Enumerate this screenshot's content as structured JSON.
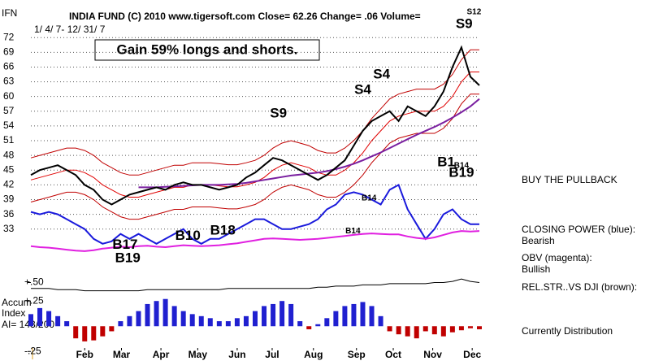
{
  "chart_data": [
    {
      "type": "line",
      "symbol": "IFN",
      "title": "INDIA FUND   (C) 2010 www.tigersoft.com   Close= 62.26  Change= .06  Volume=",
      "subtitle": "1/ 4/ 7- 12/ 31/ 7",
      "annotation": "Gain 59% longs and shorts.",
      "comment": "BUY THE PULLBACK",
      "status": "Currently Distribution",
      "grid": true,
      "x": [
        0,
        1,
        2,
        3,
        4,
        5,
        6,
        7,
        8,
        9,
        10,
        11,
        12,
        13,
        14,
        15,
        16,
        17,
        18,
        19,
        20,
        21,
        22,
        23,
        24,
        25,
        26,
        27,
        28,
        29,
        30,
        31,
        32,
        33,
        34,
        35,
        36,
        37,
        38,
        39,
        40,
        41,
        42,
        43,
        44,
        45,
        46,
        47,
        48,
        49,
        50
      ],
      "xlim": [
        0,
        50
      ],
      "xticks": [
        {
          "value": 6,
          "label": "Feb"
        },
        {
          "value": 10.1,
          "label": "Mar"
        },
        {
          "value": 14.5,
          "label": "Apr"
        },
        {
          "value": 18.6,
          "label": "May"
        },
        {
          "value": 23,
          "label": "Jun"
        },
        {
          "value": 26.9,
          "label": "Jul"
        },
        {
          "value": 31.5,
          "label": "Aug"
        },
        {
          "value": 36.3,
          "label": "Sep"
        },
        {
          "value": 40.4,
          "label": "Oct"
        },
        {
          "value": 44.8,
          "label": "Nov"
        },
        {
          "value": 49.2,
          "label": "Dec"
        }
      ],
      "ylim": [
        25,
        78
      ],
      "yticks": [
        33,
        36,
        39,
        42,
        45,
        48,
        51,
        54,
        57,
        60,
        63,
        66,
        69,
        72
      ],
      "series": [
        {
          "color": "#c00000",
          "values": [
            47.5,
            48,
            48.5,
            49,
            49.5,
            49.5,
            49,
            48,
            46.5,
            45.5,
            44.5,
            44,
            44,
            44.5,
            45,
            45.5,
            46,
            46,
            46.5,
            46.5,
            46.5,
            46.3,
            46.1,
            46.1,
            46.5,
            47,
            48,
            49.5,
            50.5,
            51,
            50.5,
            50,
            49,
            48.5,
            48.5,
            49.5,
            51,
            53,
            55.5,
            57.5,
            59.5,
            60.5,
            61,
            61.5,
            61.5,
            61.5,
            62.5,
            64.5,
            67.5,
            69.5,
            69.5
          ]
        },
        {
          "color": "#c00000",
          "values": [
            38.5,
            39,
            39.5,
            40,
            40.5,
            40.5,
            40,
            39,
            37.5,
            36.5,
            35.5,
            35,
            35,
            35.5,
            36,
            36.5,
            37,
            37,
            37.5,
            37.5,
            37.5,
            37.3,
            37.1,
            37.1,
            37.5,
            38,
            39,
            40.5,
            41.5,
            42,
            41.5,
            41,
            40,
            39.5,
            39.5,
            40.5,
            42,
            44,
            46.5,
            48.5,
            50.5,
            51.5,
            52,
            52.5,
            52.5,
            52.5,
            53.5,
            55.5,
            58.5,
            60.5,
            60.5
          ]
        },
        {
          "color": "#e00000",
          "values": [
            43,
            43.5,
            44,
            44.5,
            45,
            45,
            44.5,
            43.5,
            42,
            41,
            40,
            39.5,
            39.5,
            40,
            40.5,
            41,
            41.5,
            41.5,
            42,
            42,
            42,
            41.8,
            41.6,
            41.6,
            42,
            42.5,
            43.5,
            45,
            46,
            46.5,
            46,
            45.5,
            44.5,
            44,
            44,
            45,
            46.5,
            48.5,
            51,
            53,
            55,
            56,
            56.5,
            57,
            57,
            57,
            58,
            60,
            63,
            65,
            65
          ]
        },
        {
          "color": "#7a1fa0",
          "values": [
            null,
            null,
            null,
            null,
            null,
            null,
            null,
            null,
            null,
            null,
            null,
            null,
            41.5,
            41.5,
            41.5,
            41.6,
            41.7,
            41.8,
            41.9,
            42,
            42,
            42,
            42.1,
            42.2,
            42.4,
            42.7,
            43,
            43.3,
            43.6,
            43.9,
            44.1,
            44.3,
            44.5,
            44.8,
            45.2,
            45.7,
            46.3,
            47,
            47.8,
            48.6,
            49.5,
            50.4,
            51.3,
            52.2,
            53,
            53.8,
            54.7,
            55.7,
            56.8,
            58,
            59.5
          ]
        },
        {
          "name": "CLOSING POWER (blue):",
          "status": "Bearish",
          "color": "#1a1adc",
          "values": [
            36.5,
            36,
            36.5,
            36,
            35,
            34,
            33,
            31,
            30,
            30.5,
            32,
            31,
            32,
            31,
            30,
            31,
            32,
            33,
            31,
            30,
            31,
            31,
            32,
            33,
            34,
            35,
            35,
            34,
            33,
            33,
            33.5,
            34,
            35,
            37,
            38,
            40,
            40.5,
            40,
            39,
            38,
            41,
            42,
            37,
            34,
            31,
            33,
            36,
            37,
            35,
            34,
            34
          ]
        },
        {
          "name": "OBV (magenta):",
          "status": "Bullish",
          "color": "#e020e0",
          "values": [
            29.5,
            29.3,
            29.2,
            29,
            28.8,
            28.6,
            28.5,
            28.7,
            29,
            29.2,
            29.4,
            29.3,
            29.5,
            29.6,
            29.4,
            29.3,
            29.5,
            29.7,
            29.6,
            29.5,
            29.6,
            29.7,
            29.9,
            30.1,
            30.4,
            30.7,
            31,
            31.1,
            31,
            30.9,
            30.8,
            30.9,
            31,
            31.2,
            31.4,
            31.6,
            31.8,
            32,
            32.1,
            32,
            31.9,
            31.9,
            31.5,
            31.2,
            31,
            31.3,
            31.8,
            32.3,
            32.6,
            32.5,
            32.6
          ]
        },
        {
          "name": "IFN",
          "color": "#000000",
          "values": [
            44,
            45,
            45.5,
            46,
            45,
            44,
            42,
            41,
            39,
            38,
            39,
            40,
            40.5,
            41,
            41.5,
            41,
            42,
            42.5,
            42,
            42,
            41.5,
            41,
            41.5,
            42,
            43.5,
            44.5,
            46,
            47.5,
            47,
            46,
            45,
            44,
            43,
            44,
            45.5,
            47,
            50,
            53,
            55,
            56,
            57,
            55,
            58,
            57,
            56,
            58,
            61,
            66,
            70,
            64,
            62.26
          ]
        }
      ],
      "signals": [
        {
          "text": "S9",
          "x": 27.6,
          "y": 56.5
        },
        {
          "text": "S4",
          "x": 37,
          "y": 61.3
        },
        {
          "text": "S4",
          "x": 39.1,
          "y": 64.4
        },
        {
          "text": "S9",
          "x": 48.3,
          "y": 74.7
        },
        {
          "text": "B1",
          "x": 46.3,
          "y": 46.5
        },
        {
          "text": "B19",
          "x": 48,
          "y": 44.4
        },
        {
          "text": "B18",
          "x": 21.4,
          "y": 32.6
        },
        {
          "text": "B10",
          "x": 17.5,
          "y": 31.5
        },
        {
          "text": "B17",
          "x": 10.5,
          "y": 29.7
        },
        {
          "text": "B19",
          "x": 10.8,
          "y": 27
        }
      ],
      "minor_signals": [
        {
          "text": "S12",
          "x": 49.4,
          "y": 77.2
        },
        {
          "text": "B14",
          "x": 48,
          "y": 45.9
        },
        {
          "text": "B14",
          "x": 37.7,
          "y": 39.3
        },
        {
          "text": "B14",
          "x": 35.9,
          "y": 32.6
        }
      ]
    },
    {
      "type": "line",
      "x": [
        0,
        1,
        2,
        3,
        4,
        5,
        6,
        7,
        8,
        9,
        10,
        11,
        12,
        13,
        14,
        15,
        16,
        17,
        18,
        19,
        20,
        21,
        22,
        23,
        24,
        25,
        26,
        27,
        28,
        29,
        30,
        31,
        32,
        33,
        34,
        35,
        36,
        37,
        38,
        39,
        40,
        41,
        42,
        43,
        44,
        45,
        46,
        47,
        48,
        49,
        50
      ],
      "xlim": [
        0,
        50
      ],
      "ylim": [
        0.4,
        0.6
      ],
      "yticks": [
        {
          "value": 0.5,
          "label": "+.50"
        }
      ],
      "series": [
        {
          "name": "REL.STR..VS DJI (brown):",
          "color": "#000000",
          "values": [
            0.45,
            0.45,
            0.45,
            0.44,
            0.44,
            0.44,
            0.43,
            0.43,
            0.43,
            0.43,
            0.43,
            0.43,
            0.43,
            0.44,
            0.44,
            0.44,
            0.44,
            0.44,
            0.44,
            0.44,
            0.44,
            0.44,
            0.45,
            0.45,
            0.45,
            0.45,
            0.45,
            0.45,
            0.45,
            0.45,
            0.45,
            0.45,
            0.46,
            0.46,
            0.47,
            0.47,
            0.47,
            0.48,
            0.48,
            0.48,
            0.49,
            0.49,
            0.49,
            0.49,
            0.49,
            0.5,
            0.5,
            0.51,
            0.53,
            0.51,
            0.5
          ]
        }
      ]
    },
    {
      "type": "bar",
      "title": [
        "Accum",
        "Index",
        "AI= 143/200"
      ],
      "x": [
        0,
        1,
        2,
        3,
        4,
        5,
        6,
        7,
        8,
        9,
        10,
        11,
        12,
        13,
        14,
        15,
        16,
        17,
        18,
        19,
        20,
        21,
        22,
        23,
        24,
        25,
        26,
        27,
        28,
        29,
        30,
        31,
        32,
        33,
        34,
        35,
        36,
        37,
        38,
        39,
        40,
        41,
        42,
        43,
        44,
        45,
        46,
        47,
        48,
        49,
        50
      ],
      "xlim": [
        0,
        50
      ],
      "ylim": [
        -0.28,
        0.3
      ],
      "yticks": [
        {
          "value": 0.25,
          "label": "+.25"
        },
        {
          "value": -0.25,
          "label": "-.25"
        }
      ],
      "colors": {
        "positive": "#2020d0",
        "negative": "#c00000"
      },
      "values": [
        0.12,
        0.18,
        0.15,
        0.1,
        0.05,
        -0.12,
        -0.15,
        -0.14,
        -0.1,
        -0.05,
        0.05,
        0.1,
        0.15,
        0.22,
        0.25,
        0.27,
        0.2,
        0.15,
        0.12,
        0.1,
        0.08,
        0.05,
        0.05,
        0.08,
        0.1,
        0.15,
        0.2,
        0.22,
        0.25,
        0.22,
        0.05,
        -0.03,
        0.02,
        0.08,
        0.15,
        0.2,
        0.22,
        0.24,
        0.2,
        0.1,
        -0.05,
        -0.08,
        -0.1,
        -0.12,
        -0.05,
        -0.08,
        -0.1,
        -0.06,
        -0.04,
        -0.02,
        -0.03
      ]
    }
  ]
}
